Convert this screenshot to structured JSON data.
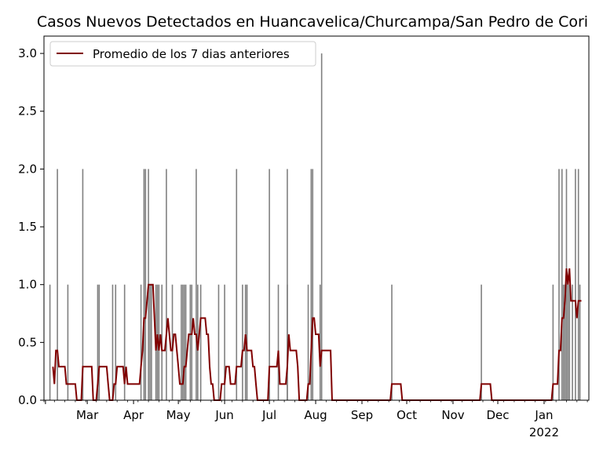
{
  "chart_data": {
    "type": "bar",
    "title": "Casos Nuevos Detectados en Huancavelica/Churcampa/San Pedro de Cori",
    "xlabel": "",
    "ylabel": "",
    "ylim": [
      0,
      3.15
    ],
    "yticks": [
      "0.0",
      "0.5",
      "1.0",
      "1.5",
      "2.0",
      "2.5",
      "3.0"
    ],
    "xlim": [
      "2020-02-03",
      "2022-02-09"
    ],
    "months": [
      {
        "label": "Mar",
        "date": "2021-03-01"
      },
      {
        "label": "Apr",
        "date": "2021-04-01"
      },
      {
        "label": "May",
        "date": "2021-05-01"
      },
      {
        "label": "Jun",
        "date": "2021-06-01"
      },
      {
        "label": "Jul",
        "date": "2021-07-01"
      },
      {
        "label": "Aug",
        "date": "2021-08-01"
      },
      {
        "label": "Sep",
        "date": "2021-09-01"
      },
      {
        "label": "Oct",
        "date": "2021-10-01"
      },
      {
        "label": "Nov",
        "date": "2021-11-01"
      },
      {
        "label": "Dec",
        "date": "2021-12-01"
      },
      {
        "label": "Jan",
        "date": "2022-01-01"
      }
    ],
    "year_label": "2022",
    "bar_color": "#808080",
    "line_color": "#800000",
    "legend": {
      "position": "upper-left",
      "label": "Promedio de los 7 dias anteriores"
    },
    "series": [
      {
        "kind": "bar",
        "points": [
          [
            "2021-02-04",
            1
          ],
          [
            "2021-02-09",
            2
          ],
          [
            "2021-02-16",
            1
          ],
          [
            "2021-02-26",
            2
          ],
          [
            "2021-03-08",
            1
          ],
          [
            "2021-03-09",
            1
          ],
          [
            "2021-03-18",
            1
          ],
          [
            "2021-03-20",
            1
          ],
          [
            "2021-03-26",
            1
          ],
          [
            "2021-04-06",
            1
          ],
          [
            "2021-04-08",
            2
          ],
          [
            "2021-04-09",
            2
          ],
          [
            "2021-04-11",
            2
          ],
          [
            "2021-04-12",
            1
          ],
          [
            "2021-04-13",
            1
          ],
          [
            "2021-04-16",
            1
          ],
          [
            "2021-04-17",
            1
          ],
          [
            "2021-04-18",
            1
          ],
          [
            "2021-04-20",
            1
          ],
          [
            "2021-04-23",
            2
          ],
          [
            "2021-04-27",
            1
          ],
          [
            "2021-05-03",
            1
          ],
          [
            "2021-05-04",
            1
          ],
          [
            "2021-05-05",
            1
          ],
          [
            "2021-05-06",
            1
          ],
          [
            "2021-05-09",
            1
          ],
          [
            "2021-05-10",
            1
          ],
          [
            "2021-05-13",
            2
          ],
          [
            "2021-05-14",
            1
          ],
          [
            "2021-05-16",
            1
          ],
          [
            "2021-05-28",
            1
          ],
          [
            "2021-06-01",
            1
          ],
          [
            "2021-06-09",
            2
          ],
          [
            "2021-06-13",
            1
          ],
          [
            "2021-06-15",
            1
          ],
          [
            "2021-06-16",
            1
          ],
          [
            "2021-07-01",
            2
          ],
          [
            "2021-07-07",
            1
          ],
          [
            "2021-07-13",
            2
          ],
          [
            "2021-07-13",
            1
          ],
          [
            "2021-07-27",
            1
          ],
          [
            "2021-07-29",
            2
          ],
          [
            "2021-07-30",
            2
          ],
          [
            "2021-08-04",
            1
          ],
          [
            "2021-08-05",
            3
          ],
          [
            "2021-09-21",
            1
          ],
          [
            "2021-11-20",
            1
          ],
          [
            "2022-01-07",
            1
          ],
          [
            "2022-01-11",
            2
          ],
          [
            "2022-01-13",
            2
          ],
          [
            "2022-01-14",
            1
          ],
          [
            "2022-01-15",
            1
          ],
          [
            "2022-01-16",
            2
          ],
          [
            "2022-01-17",
            1
          ],
          [
            "2022-01-18",
            1
          ],
          [
            "2022-01-20",
            1
          ],
          [
            "2022-01-22",
            2
          ],
          [
            "2022-01-24",
            2
          ],
          [
            "2022-01-25",
            1
          ]
        ]
      },
      {
        "kind": "line",
        "name": "Promedio de los 7 dias anteriores",
        "points": [
          [
            "2021-02-06",
            0.29
          ],
          [
            "2021-02-07",
            0.14
          ],
          [
            "2021-02-08",
            0.43
          ],
          [
            "2021-02-09",
            0.43
          ],
          [
            "2021-02-10",
            0.29
          ],
          [
            "2021-02-14",
            0.29
          ],
          [
            "2021-02-15",
            0.14
          ],
          [
            "2021-02-21",
            0.14
          ],
          [
            "2021-02-22",
            0.0
          ],
          [
            "2021-02-25",
            0.0
          ],
          [
            "2021-02-26",
            0.29
          ],
          [
            "2021-03-04",
            0.29
          ],
          [
            "2021-03-05",
            0.0
          ],
          [
            "2021-03-07",
            0.0
          ],
          [
            "2021-03-08",
            0.14
          ],
          [
            "2021-03-09",
            0.29
          ],
          [
            "2021-03-14",
            0.29
          ],
          [
            "2021-03-15",
            0.14
          ],
          [
            "2021-03-16",
            0.0
          ],
          [
            "2021-03-18",
            0.0
          ],
          [
            "2021-03-19",
            0.14
          ],
          [
            "2021-03-20",
            0.14
          ],
          [
            "2021-03-21",
            0.29
          ],
          [
            "2021-03-25",
            0.29
          ],
          [
            "2021-03-26",
            0.14
          ],
          [
            "2021-03-27",
            0.29
          ],
          [
            "2021-03-28",
            0.14
          ],
          [
            "2021-04-05",
            0.14
          ],
          [
            "2021-04-06",
            0.29
          ],
          [
            "2021-04-07",
            0.43
          ],
          [
            "2021-04-08",
            0.71
          ],
          [
            "2021-04-09",
            0.71
          ],
          [
            "2021-04-11",
            1.0
          ],
          [
            "2021-04-14",
            1.0
          ],
          [
            "2021-04-15",
            0.71
          ],
          [
            "2021-04-16",
            0.43
          ],
          [
            "2021-04-17",
            0.57
          ],
          [
            "2021-04-18",
            0.43
          ],
          [
            "2021-04-19",
            0.57
          ],
          [
            "2021-04-20",
            0.43
          ],
          [
            "2021-04-22",
            0.43
          ],
          [
            "2021-04-23",
            0.57
          ],
          [
            "2021-04-24",
            0.71
          ],
          [
            "2021-04-25",
            0.57
          ],
          [
            "2021-04-26",
            0.43
          ],
          [
            "2021-04-27",
            0.43
          ],
          [
            "2021-04-28",
            0.57
          ],
          [
            "2021-04-29",
            0.57
          ],
          [
            "2021-04-30",
            0.43
          ],
          [
            "2021-05-01",
            0.29
          ],
          [
            "2021-05-02",
            0.14
          ],
          [
            "2021-05-04",
            0.14
          ],
          [
            "2021-05-05",
            0.29
          ],
          [
            "2021-05-06",
            0.29
          ],
          [
            "2021-05-07",
            0.43
          ],
          [
            "2021-05-08",
            0.57
          ],
          [
            "2021-05-10",
            0.57
          ],
          [
            "2021-05-11",
            0.71
          ],
          [
            "2021-05-12",
            0.57
          ],
          [
            "2021-05-13",
            0.57
          ],
          [
            "2021-05-14",
            0.43
          ],
          [
            "2021-05-15",
            0.57
          ],
          [
            "2021-05-16",
            0.71
          ],
          [
            "2021-05-19",
            0.71
          ],
          [
            "2021-05-20",
            0.57
          ],
          [
            "2021-05-21",
            0.57
          ],
          [
            "2021-05-22",
            0.29
          ],
          [
            "2021-05-23",
            0.14
          ],
          [
            "2021-05-24",
            0.14
          ],
          [
            "2021-05-25",
            0.0
          ],
          [
            "2021-05-29",
            0.0
          ],
          [
            "2021-05-30",
            0.14
          ],
          [
            "2021-06-01",
            0.14
          ],
          [
            "2021-06-02",
            0.29
          ],
          [
            "2021-06-04",
            0.29
          ],
          [
            "2021-06-05",
            0.14
          ],
          [
            "2021-06-08",
            0.14
          ],
          [
            "2021-06-09",
            0.29
          ],
          [
            "2021-06-12",
            0.29
          ],
          [
            "2021-06-13",
            0.43
          ],
          [
            "2021-06-14",
            0.43
          ],
          [
            "2021-06-15",
            0.57
          ],
          [
            "2021-06-16",
            0.43
          ],
          [
            "2021-06-19",
            0.43
          ],
          [
            "2021-06-20",
            0.29
          ],
          [
            "2021-06-21",
            0.29
          ],
          [
            "2021-06-22",
            0.14
          ],
          [
            "2021-06-23",
            0.0
          ],
          [
            "2021-06-30",
            0.0
          ],
          [
            "2021-07-01",
            0.29
          ],
          [
            "2021-07-06",
            0.29
          ],
          [
            "2021-07-07",
            0.43
          ],
          [
            "2021-07-08",
            0.14
          ],
          [
            "2021-07-12",
            0.14
          ],
          [
            "2021-07-13",
            0.29
          ],
          [
            "2021-07-14",
            0.57
          ],
          [
            "2021-07-15",
            0.43
          ],
          [
            "2021-07-19",
            0.43
          ],
          [
            "2021-07-20",
            0.29
          ],
          [
            "2021-07-21",
            0.0
          ],
          [
            "2021-07-26",
            0.0
          ],
          [
            "2021-07-27",
            0.14
          ],
          [
            "2021-07-28",
            0.14
          ],
          [
            "2021-07-29",
            0.43
          ],
          [
            "2021-07-30",
            0.71
          ],
          [
            "2021-07-31",
            0.71
          ],
          [
            "2021-08-01",
            0.57
          ],
          [
            "2021-08-03",
            0.57
          ],
          [
            "2021-08-04",
            0.29
          ],
          [
            "2021-08-05",
            0.43
          ],
          [
            "2021-08-11",
            0.43
          ],
          [
            "2021-08-12",
            0.0
          ],
          [
            "2021-09-20",
            0.0
          ],
          [
            "2021-09-21",
            0.14
          ],
          [
            "2021-09-27",
            0.14
          ],
          [
            "2021-09-28",
            0.0
          ],
          [
            "2021-11-19",
            0.0
          ],
          [
            "2021-11-20",
            0.14
          ],
          [
            "2021-11-26",
            0.14
          ],
          [
            "2021-11-27",
            0.0
          ],
          [
            "2022-01-06",
            0.0
          ],
          [
            "2022-01-07",
            0.14
          ],
          [
            "2022-01-10",
            0.14
          ],
          [
            "2022-01-11",
            0.43
          ],
          [
            "2022-01-12",
            0.43
          ],
          [
            "2022-01-13",
            0.71
          ],
          [
            "2022-01-14",
            0.71
          ],
          [
            "2022-01-15",
            0.86
          ],
          [
            "2022-01-16",
            1.14
          ],
          [
            "2022-01-17",
            1.0
          ],
          [
            "2022-01-18",
            1.14
          ],
          [
            "2022-01-19",
            0.86
          ],
          [
            "2022-01-22",
            0.86
          ],
          [
            "2022-01-23",
            0.71
          ],
          [
            "2022-01-24",
            0.86
          ],
          [
            "2022-01-26",
            0.86
          ]
        ]
      }
    ]
  }
}
